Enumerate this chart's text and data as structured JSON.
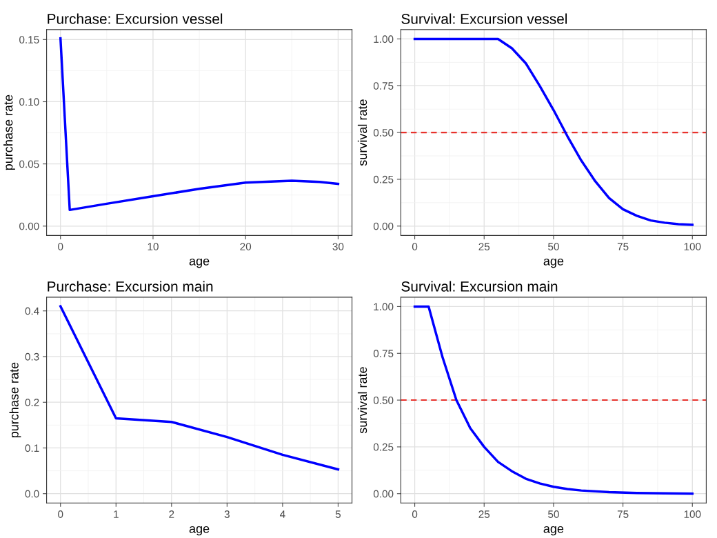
{
  "chart_data": [
    {
      "type": "line",
      "title": "Purchase: Excursion vessel",
      "xlabel": "age",
      "ylabel": "purchase rate",
      "xlim": [
        -1.5,
        31.5
      ],
      "ylim": [
        -0.0075,
        0.158
      ],
      "xticks": [
        0,
        10,
        20,
        30
      ],
      "yticks": [
        {
          "value": 0,
          "label": "0.00"
        },
        {
          "value": 0.05,
          "label": "0.05"
        },
        {
          "value": 0.1,
          "label": "0.10"
        },
        {
          "value": 0.15,
          "label": "0.15"
        }
      ],
      "grid": true,
      "line_style": "solid",
      "marker": "none",
      "series": [
        {
          "color": "#0000ff",
          "x": [
            0,
            1,
            5,
            10,
            15,
            20,
            25,
            28,
            30
          ],
          "values": [
            0.151,
            0.013,
            0.018,
            0.024,
            0.03,
            0.035,
            0.0365,
            0.0355,
            0.034
          ]
        }
      ]
    },
    {
      "type": "line",
      "title": "Survival: Excursion vessel",
      "xlabel": "age",
      "ylabel": "survival rate",
      "xlim": [
        -5,
        105
      ],
      "ylim": [
        -0.05,
        1.05
      ],
      "xticks": [
        0,
        25,
        50,
        75,
        100
      ],
      "yticks": [
        {
          "value": 0,
          "label": "0.00"
        },
        {
          "value": 0.25,
          "label": "0.25"
        },
        {
          "value": 0.5,
          "label": "0.50"
        },
        {
          "value": 0.75,
          "label": "0.75"
        },
        {
          "value": 1,
          "label": "1.00"
        }
      ],
      "grid": true,
      "line_style": "solid",
      "marker": "none",
      "ref_lines": [
        {
          "axis": "y",
          "value": 0.5,
          "color": "#e8322c",
          "line_style": "dashed"
        }
      ],
      "series": [
        {
          "color": "#0000ff",
          "x": [
            0,
            30,
            35,
            40,
            45,
            50,
            55,
            60,
            65,
            70,
            75,
            80,
            85,
            90,
            95,
            100
          ],
          "values": [
            1,
            1,
            0.95,
            0.87,
            0.75,
            0.62,
            0.48,
            0.35,
            0.24,
            0.15,
            0.09,
            0.055,
            0.03,
            0.018,
            0.01,
            0.007
          ]
        }
      ]
    },
    {
      "type": "line",
      "title": "Purchase: Excursion main",
      "xlabel": "age",
      "ylabel": "purchase rate",
      "xlim": [
        -0.25,
        5.25
      ],
      "ylim": [
        -0.0205,
        0.43
      ],
      "xticks": [
        0,
        1,
        2,
        3,
        4,
        5
      ],
      "yticks": [
        {
          "value": 0,
          "label": "0.0"
        },
        {
          "value": 0.1,
          "label": "0.1"
        },
        {
          "value": 0.2,
          "label": "0.2"
        },
        {
          "value": 0.3,
          "label": "0.3"
        },
        {
          "value": 0.4,
          "label": "0.4"
        }
      ],
      "grid": true,
      "line_style": "solid",
      "marker": "none",
      "series": [
        {
          "color": "#0000ff",
          "x": [
            0,
            1,
            2,
            3,
            4,
            5
          ],
          "values": [
            0.41,
            0.165,
            0.157,
            0.124,
            0.085,
            0.053
          ]
        }
      ]
    },
    {
      "type": "line",
      "title": "Survival: Excursion main",
      "xlabel": "age",
      "ylabel": "survival rate",
      "xlim": [
        -5,
        105
      ],
      "ylim": [
        -0.05,
        1.05
      ],
      "xticks": [
        0,
        25,
        50,
        75,
        100
      ],
      "yticks": [
        {
          "value": 0,
          "label": "0.00"
        },
        {
          "value": 0.25,
          "label": "0.25"
        },
        {
          "value": 0.5,
          "label": "0.50"
        },
        {
          "value": 0.75,
          "label": "0.75"
        },
        {
          "value": 1,
          "label": "1.00"
        }
      ],
      "grid": true,
      "line_style": "solid",
      "marker": "none",
      "ref_lines": [
        {
          "axis": "y",
          "value": 0.5,
          "color": "#e8322c",
          "line_style": "dashed"
        }
      ],
      "series": [
        {
          "color": "#0000ff",
          "x": [
            0,
            5,
            10,
            15,
            20,
            25,
            30,
            35,
            40,
            45,
            50,
            55,
            60,
            70,
            80,
            90,
            100
          ],
          "values": [
            1,
            1,
            0.73,
            0.5,
            0.35,
            0.25,
            0.17,
            0.12,
            0.08,
            0.055,
            0.037,
            0.025,
            0.017,
            0.008,
            0.004,
            0.002,
            0.0
          ]
        }
      ]
    }
  ]
}
